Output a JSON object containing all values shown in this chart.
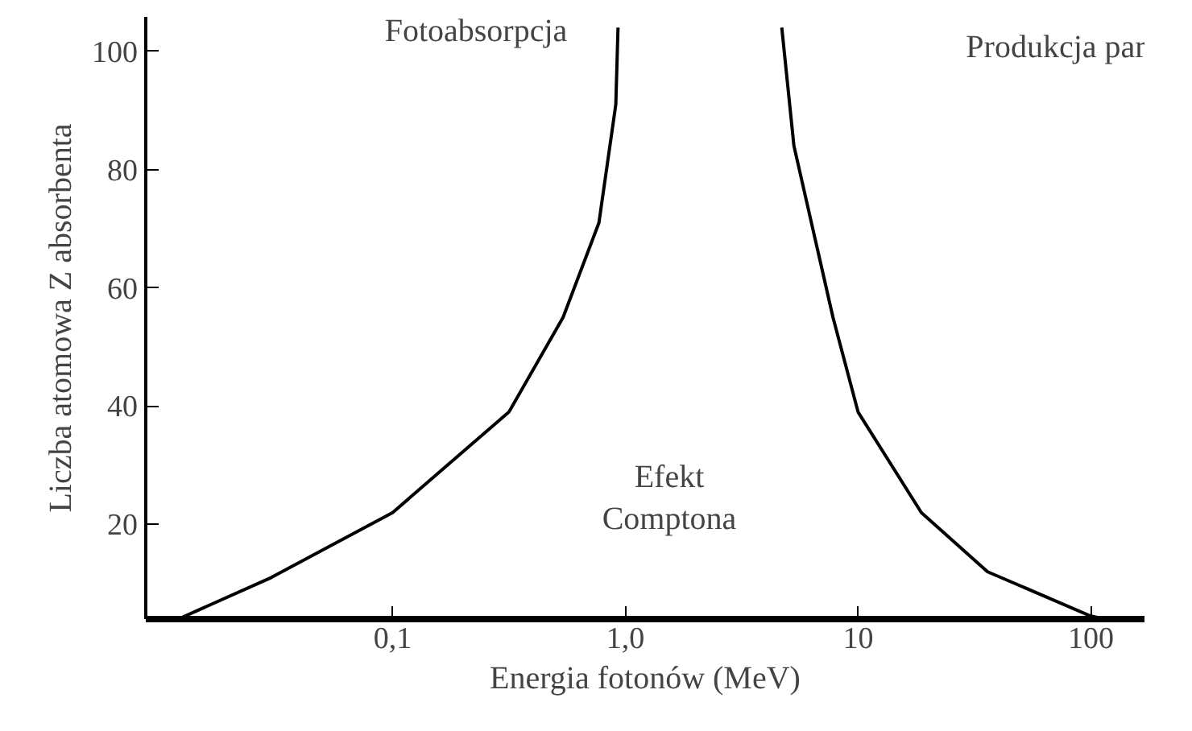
{
  "chart_data": {
    "type": "line",
    "xlabel": "Energia fotonów (MeV)",
    "ylabel": "Liczba atomowa Z absorbenta",
    "log": "x",
    "xlim": [
      0.0087,
      170
    ],
    "ylim": [
      4,
      105.8
    ],
    "xticks": [
      {
        "value": 0.1,
        "label": "0,1"
      },
      {
        "value": 1,
        "label": "1,0"
      },
      10,
      100
    ],
    "yticks": [
      20,
      40,
      60,
      80,
      100
    ],
    "grid": false,
    "marker": "none",
    "line_style": "solid",
    "series": [
      {
        "color": "#000000",
        "x": [
          0.012,
          0.03,
          0.1,
          0.316,
          0.54,
          0.77,
          0.91,
          0.93
        ],
        "values": [
          4,
          11,
          22,
          39,
          55,
          71,
          91,
          104
        ]
      },
      {
        "color": "#000000",
        "x": [
          4.7,
          5.3,
          7.8,
          10,
          18.7,
          36,
          100,
          115
        ],
        "values": [
          104,
          84,
          55,
          39,
          22,
          12,
          4.5,
          4
        ]
      }
    ],
    "annotations": [
      "Fotoabsorpcja",
      "Produkcja par",
      "Efekt\nComptona"
    ]
  }
}
